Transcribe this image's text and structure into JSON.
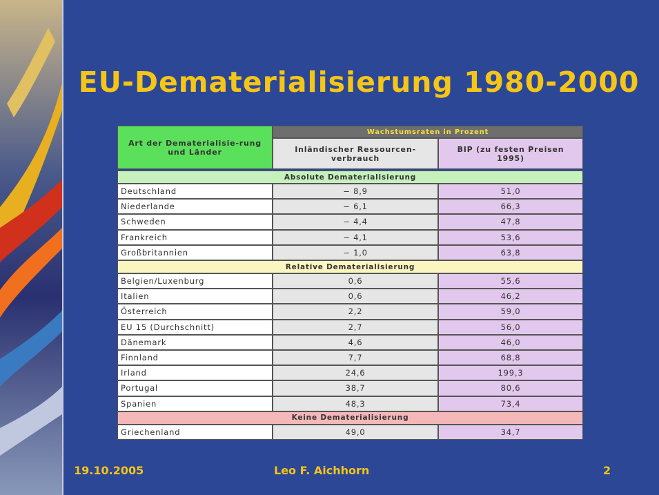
{
  "title": "EU-Dematerialisierung 1980-2000",
  "table": {
    "header": {
      "col0": "Art der Dematerialisie-rung und Länder",
      "group": "Wachstumsraten in Prozent",
      "col1": "Inländischer Ressourcen-verbrauch",
      "col2": "BIP (zu festen Preisen 1995)"
    },
    "sections": [
      {
        "title": "Absolute Dematerialisierung",
        "rows": [
          [
            "Deutschland",
            "− 8,9",
            "51,0"
          ],
          [
            "Niederlande",
            "− 6,1",
            "66,3"
          ],
          [
            "Schweden",
            "− 4,4",
            "47,8"
          ],
          [
            "Frankreich",
            "− 4,1",
            "53,6"
          ],
          [
            "Großbritannien",
            "− 1,0",
            "63,8"
          ]
        ]
      },
      {
        "title": "Relative Dematerialisierung",
        "rows": [
          [
            "Belgien/Luxenburg",
            "0,6",
            "55,6"
          ],
          [
            "Italien",
            "0,6",
            "46,2"
          ],
          [
            "Österreich",
            "2,2",
            "59,0"
          ],
          [
            "EU 15 (Durchschnitt)",
            "2,7",
            "56,0"
          ],
          [
            "Dänemark",
            "4,6",
            "46,0"
          ],
          [
            "Finnland",
            "7,7",
            "68,8"
          ],
          [
            "Irland",
            "24,6",
            "199,3"
          ],
          [
            "Portugal",
            "38,7",
            "80,6"
          ],
          [
            "Spanien",
            "48,3",
            "73,4"
          ]
        ]
      },
      {
        "title": "Keine Dematerialisierung",
        "rows": [
          [
            "Griechenland",
            "49,0",
            "34,7"
          ]
        ]
      }
    ]
  },
  "footer": {
    "date": "19.10.2005",
    "author": "Leo F. Aichhorn",
    "page": "2"
  }
}
